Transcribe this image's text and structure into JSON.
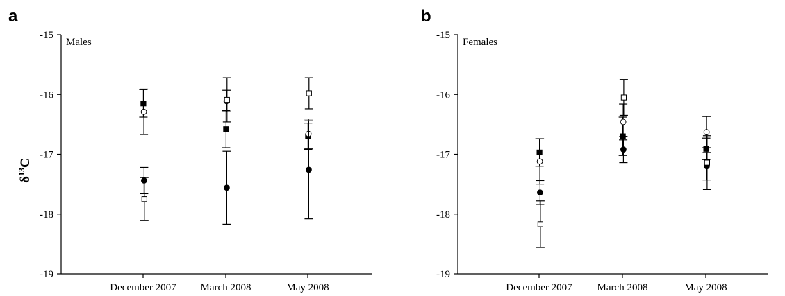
{
  "chart_data": [
    {
      "type": "scatter",
      "panel_letter": "a",
      "subtitle": "Males",
      "ylabel": "δ13C",
      "ylabel_base": "δ",
      "ylabel_sup": "13",
      "ylabel_tail": "C",
      "ylim": [
        -19,
        -15
      ],
      "yticks": [
        "-15",
        "-16",
        "-17",
        "-18",
        "-19"
      ],
      "categories": [
        "December 2007",
        "March 2008",
        "May 2008"
      ],
      "grid": false,
      "series": [
        {
          "marker": "filled-square",
          "color": "#000000",
          "points": [
            {
              "y": -16.15,
              "err": 0.23
            },
            {
              "y": -16.58,
              "err": 0.31
            },
            {
              "y": -16.7,
              "err": 0.22
            }
          ]
        },
        {
          "marker": "open-circle",
          "color": "#000000",
          "points": [
            {
              "y": -16.29,
              "err": 0.38
            },
            {
              "y": -16.11,
              "err": 0.18
            },
            {
              "y": -16.66,
              "err": 0.25
            }
          ]
        },
        {
          "marker": "filled-circle",
          "color": "#000000",
          "points": [
            {
              "y": -17.44,
              "err": 0.22
            },
            {
              "y": -17.56,
              "err": 0.61
            },
            {
              "y": -17.26,
              "err": 0.82
            }
          ]
        },
        {
          "marker": "open-square",
          "color": "#000000",
          "points": [
            {
              "y": -17.75,
              "err": 0.36
            },
            {
              "y": -16.09,
              "err": 0.37
            },
            {
              "y": -15.98,
              "err": 0.26
            }
          ]
        }
      ]
    },
    {
      "type": "scatter",
      "panel_letter": "b",
      "subtitle": "Females",
      "ylabel": "",
      "ylim": [
        -19,
        -15
      ],
      "yticks": [
        "-15",
        "-16",
        "-17",
        "-18",
        "-19"
      ],
      "categories": [
        "December 2007",
        "March 2008",
        "May 2008"
      ],
      "grid": false,
      "series": [
        {
          "marker": "filled-square",
          "color": "#000000",
          "points": [
            {
              "y": -16.97,
              "err": 0.23
            },
            {
              "y": -16.7,
              "err": 0.32
            },
            {
              "y": -16.91,
              "err": 0.18
            }
          ]
        },
        {
          "marker": "open-circle",
          "color": "#000000",
          "points": [
            {
              "y": -17.12,
              "err": 0.38
            },
            {
              "y": -16.46,
              "err": 0.3
            },
            {
              "y": -16.63,
              "err": 0.26
            }
          ]
        },
        {
          "marker": "filled-circle",
          "color": "#000000",
          "points": [
            {
              "y": -17.64,
              "err": 0.2
            },
            {
              "y": -16.92,
              "err": 0.22
            },
            {
              "y": -17.2,
              "err": 0.23
            }
          ]
        },
        {
          "marker": "open-square",
          "color": "#000000",
          "points": [
            {
              "y": -18.17,
              "err": 0.39
            },
            {
              "y": -16.05,
              "err": 0.3
            },
            {
              "y": -17.14,
              "err": 0.45
            }
          ]
        }
      ]
    }
  ]
}
